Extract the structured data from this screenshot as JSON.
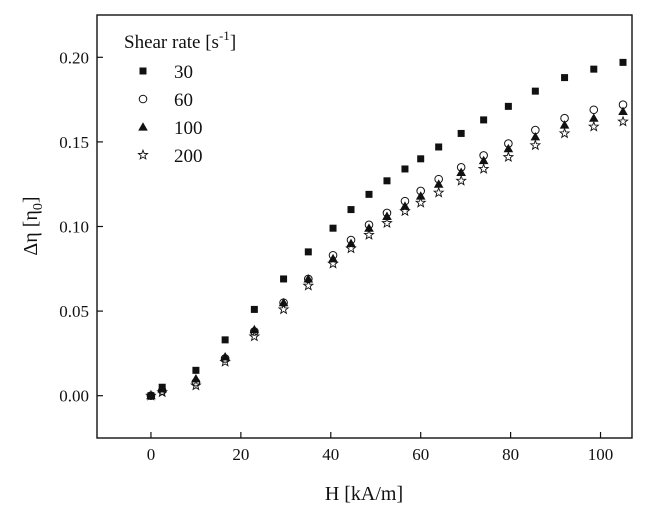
{
  "chart_data": {
    "type": "scatter",
    "xlabel": "H [kA/m]",
    "ylabel_main": "Δη [η",
    "ylabel_sub": "0",
    "ylabel_close": "]",
    "xlim": [
      -12,
      107
    ],
    "ylim": [
      -0.025,
      0.225
    ],
    "xticks": [
      0,
      20,
      40,
      60,
      80,
      100
    ],
    "yticks": [
      0.0,
      0.05,
      0.1,
      0.15,
      0.2
    ],
    "ytick_labels": [
      "0.00",
      "0.05",
      "0.10",
      "0.15",
      "0.20"
    ],
    "legend": {
      "title_main": "Shear rate [s",
      "title_sup": "-1",
      "title_close": "]",
      "placement": "top-left"
    },
    "series": [
      {
        "name": "30",
        "marker": "square-filled",
        "x": [
          0,
          2.5,
          10,
          16.5,
          23,
          29.5,
          35,
          40.5,
          44.5,
          48.5,
          52.5,
          56.5,
          60,
          64,
          69,
          74,
          79.5,
          85.5,
          92,
          98.5,
          105
        ],
        "y": [
          0.0,
          0.005,
          0.015,
          0.033,
          0.051,
          0.069,
          0.085,
          0.099,
          0.11,
          0.119,
          0.127,
          0.134,
          0.14,
          0.147,
          0.155,
          0.163,
          0.171,
          0.18,
          0.188,
          0.193,
          0.197
        ]
      },
      {
        "name": "60",
        "marker": "circle-open",
        "x": [
          0,
          2.5,
          10,
          16.5,
          23,
          29.5,
          35,
          40.5,
          44.5,
          48.5,
          52.5,
          56.5,
          60,
          64,
          69,
          74,
          79.5,
          85.5,
          92,
          98.5,
          105
        ],
        "y": [
          0.0,
          0.003,
          0.008,
          0.022,
          0.038,
          0.055,
          0.069,
          0.083,
          0.092,
          0.101,
          0.108,
          0.115,
          0.121,
          0.128,
          0.135,
          0.142,
          0.149,
          0.157,
          0.164,
          0.169,
          0.172
        ]
      },
      {
        "name": "100",
        "marker": "triangle-filled",
        "x": [
          0,
          2.5,
          10,
          16.5,
          23,
          29.5,
          35,
          40.5,
          44.5,
          48.5,
          52.5,
          56.5,
          60,
          64,
          69,
          74,
          79.5,
          85.5,
          92,
          98.5,
          105
        ],
        "y": [
          0.0,
          0.004,
          0.01,
          0.023,
          0.039,
          0.055,
          0.069,
          0.081,
          0.09,
          0.099,
          0.106,
          0.112,
          0.118,
          0.125,
          0.132,
          0.139,
          0.146,
          0.153,
          0.16,
          0.164,
          0.168
        ]
      },
      {
        "name": "200",
        "marker": "star-open",
        "x": [
          0,
          2.5,
          10,
          16.5,
          23,
          29.5,
          35,
          40.5,
          44.5,
          48.5,
          52.5,
          56.5,
          60,
          64,
          69,
          74,
          79.5,
          85.5,
          92,
          98.5,
          105
        ],
        "y": [
          0.0,
          0.002,
          0.006,
          0.02,
          0.035,
          0.051,
          0.065,
          0.078,
          0.087,
          0.095,
          0.102,
          0.109,
          0.114,
          0.12,
          0.127,
          0.134,
          0.141,
          0.148,
          0.155,
          0.159,
          0.162
        ]
      }
    ],
    "colors": {
      "marker": "#111111",
      "axis": "#111111"
    }
  }
}
